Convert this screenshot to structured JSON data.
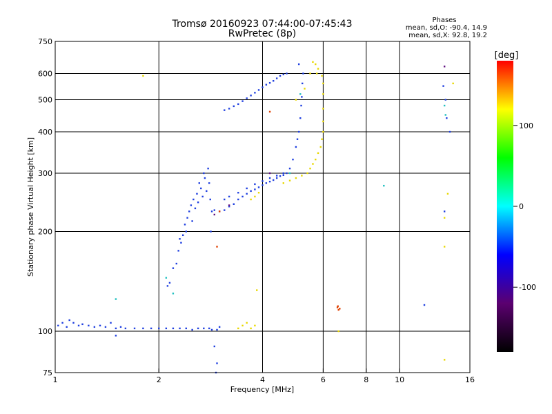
{
  "chart_data": {
    "type": "scatter",
    "title": "Tromsø 20160923 07:44:00-07:45:43",
    "subtitle": "RwPretec (8p)",
    "xlabel": "Frequency [MHz]",
    "ylabel": "Stationary phase Virtual Height [km]",
    "x_scale": "log",
    "y_scale": "log",
    "xlim": [
      1,
      16
    ],
    "ylim": [
      75,
      750
    ],
    "x_ticks": [
      1,
      2,
      4,
      6,
      8,
      10,
      16
    ],
    "x_tick_labels": [
      "1",
      "2",
      "4",
      "6",
      "8",
      "10",
      "16"
    ],
    "x_grid": [
      2,
      4,
      6,
      8,
      10
    ],
    "y_ticks": [
      75,
      100,
      200,
      300,
      400,
      500,
      600,
      750
    ],
    "y_tick_labels": [
      "75",
      "100",
      "200",
      "300",
      "400",
      "500",
      "600",
      "750"
    ],
    "y_grid": [
      100,
      200,
      300,
      400,
      500,
      600
    ],
    "grid": true,
    "stats": {
      "heading": "Phases",
      "line_o": "mean, sd,O: -90.4, 14.9",
      "line_x": "mean, sd,X:  92.8, 19.2"
    },
    "colorbar": {
      "label": "[deg]",
      "range": [
        -180,
        180
      ],
      "ticks": [
        100,
        0,
        -100
      ],
      "tick_labels": [
        "100",
        "0",
        "-100"
      ],
      "stops": [
        "#000000",
        "#5b0070",
        "#0000ff",
        "#00ffff",
        "#00ff00",
        "#ffff00",
        "#ff0000"
      ]
    },
    "series": [
      {
        "phase": -100,
        "color": "#2040e0",
        "points": [
          [
            1.02,
            104
          ],
          [
            1.05,
            106
          ],
          [
            1.08,
            103
          ],
          [
            1.1,
            108
          ],
          [
            1.13,
            106
          ],
          [
            1.17,
            104
          ],
          [
            1.2,
            105
          ],
          [
            1.25,
            104
          ],
          [
            1.3,
            103
          ],
          [
            1.35,
            104
          ],
          [
            1.4,
            103
          ],
          [
            1.45,
            106
          ],
          [
            1.5,
            102
          ],
          [
            1.55,
            103
          ],
          [
            1.6,
            102
          ],
          [
            1.7,
            102
          ],
          [
            1.8,
            102
          ],
          [
            1.9,
            102
          ],
          [
            2.0,
            102
          ],
          [
            2.1,
            102
          ],
          [
            2.2,
            102
          ],
          [
            2.3,
            102
          ],
          [
            2.4,
            102
          ],
          [
            2.5,
            101
          ],
          [
            2.6,
            102
          ],
          [
            2.7,
            102
          ],
          [
            2.8,
            102
          ],
          [
            2.85,
            101
          ],
          [
            2.95,
            101
          ],
          [
            3.0,
            103
          ],
          [
            2.12,
            137
          ],
          [
            2.15,
            140
          ],
          [
            2.2,
            155
          ],
          [
            2.25,
            160
          ],
          [
            2.28,
            175
          ],
          [
            2.3,
            190
          ],
          [
            2.32,
            185
          ],
          [
            2.35,
            195
          ],
          [
            2.38,
            210
          ],
          [
            2.4,
            200
          ],
          [
            2.42,
            220
          ],
          [
            2.45,
            230
          ],
          [
            2.48,
            240
          ],
          [
            2.5,
            215
          ],
          [
            2.52,
            250
          ],
          [
            2.55,
            235
          ],
          [
            2.58,
            260
          ],
          [
            2.6,
            245
          ],
          [
            2.62,
            280
          ],
          [
            2.65,
            270
          ],
          [
            2.68,
            255
          ],
          [
            2.7,
            300
          ],
          [
            2.72,
            290
          ],
          [
            2.75,
            265
          ],
          [
            2.78,
            310
          ],
          [
            2.8,
            280
          ],
          [
            2.82,
            250
          ],
          [
            2.85,
            230
          ],
          [
            2.83,
            200
          ],
          [
            2.9,
            232
          ],
          [
            3.0,
            230
          ],
          [
            3.1,
            232
          ],
          [
            3.2,
            238
          ],
          [
            3.3,
            242
          ],
          [
            3.4,
            250
          ],
          [
            3.5,
            255
          ],
          [
            3.6,
            260
          ],
          [
            3.7,
            265
          ],
          [
            3.8,
            268
          ],
          [
            3.9,
            272
          ],
          [
            4.0,
            276
          ],
          [
            4.1,
            280
          ],
          [
            4.2,
            283
          ],
          [
            4.3,
            286
          ],
          [
            4.4,
            290
          ],
          [
            4.5,
            294
          ],
          [
            4.6,
            296
          ],
          [
            4.7,
            300
          ],
          [
            4.8,
            310
          ],
          [
            4.9,
            330
          ],
          [
            5.0,
            360
          ],
          [
            5.05,
            380
          ],
          [
            5.1,
            400
          ],
          [
            5.15,
            440
          ],
          [
            5.18,
            480
          ],
          [
            5.2,
            510
          ],
          [
            5.22,
            560
          ],
          [
            5.25,
            600
          ],
          [
            3.1,
            250
          ],
          [
            3.2,
            255
          ],
          [
            3.4,
            262
          ],
          [
            3.6,
            270
          ],
          [
            3.8,
            278
          ],
          [
            4.0,
            284
          ],
          [
            4.2,
            290
          ],
          [
            4.4,
            295
          ],
          [
            4.6,
            300
          ],
          [
            3.1,
            465
          ],
          [
            3.2,
            470
          ],
          [
            3.3,
            478
          ],
          [
            3.4,
            485
          ],
          [
            3.5,
            495
          ],
          [
            3.6,
            505
          ],
          [
            3.7,
            515
          ],
          [
            3.8,
            525
          ],
          [
            3.9,
            535
          ],
          [
            4.0,
            545
          ],
          [
            4.1,
            555
          ],
          [
            4.2,
            562
          ],
          [
            4.3,
            570
          ],
          [
            4.4,
            580
          ],
          [
            4.5,
            590
          ],
          [
            4.6,
            596
          ],
          [
            4.7,
            600
          ],
          [
            5.1,
            640
          ],
          [
            1.5,
            97
          ],
          [
            2.9,
            90
          ],
          [
            2.95,
            80
          ],
          [
            2.93,
            75
          ],
          [
            14.0,
            400
          ],
          [
            13.4,
            550
          ],
          [
            13.6,
            500
          ],
          [
            13.7,
            440
          ],
          [
            13.5,
            230
          ],
          [
            11.8,
            120
          ]
        ]
      },
      {
        "phase": 100,
        "color": "#e8d800",
        "points": [
          [
            3.4,
            102
          ],
          [
            3.5,
            104
          ],
          [
            3.6,
            106
          ],
          [
            3.7,
            102
          ],
          [
            3.8,
            104
          ],
          [
            3.85,
            133
          ],
          [
            3.7,
            250
          ],
          [
            3.8,
            255
          ],
          [
            3.9,
            262
          ],
          [
            4.6,
            280
          ],
          [
            4.8,
            285
          ],
          [
            5.0,
            290
          ],
          [
            5.2,
            295
          ],
          [
            5.4,
            300
          ],
          [
            5.5,
            310
          ],
          [
            5.6,
            320
          ],
          [
            5.7,
            330
          ],
          [
            5.8,
            345
          ],
          [
            5.9,
            360
          ],
          [
            5.95,
            380
          ],
          [
            6.0,
            400
          ],
          [
            6.0,
            430
          ],
          [
            6.0,
            470
          ],
          [
            6.0,
            520
          ],
          [
            6.0,
            560
          ],
          [
            5.95,
            590
          ],
          [
            5.8,
            620
          ],
          [
            5.7,
            640
          ],
          [
            5.75,
            600
          ],
          [
            5.6,
            650
          ],
          [
            5.5,
            600
          ],
          [
            5.0,
            500
          ],
          [
            5.3,
            540
          ],
          [
            1.8,
            590
          ],
          [
            6.65,
            100
          ],
          [
            13.5,
            180
          ],
          [
            13.8,
            260
          ],
          [
            13.5,
            220
          ],
          [
            14.3,
            560
          ],
          [
            13.5,
            82
          ]
        ]
      },
      {
        "phase": 0,
        "color": "#20c0c0",
        "points": [
          [
            1.5,
            125
          ],
          [
            9.0,
            275
          ],
          [
            13.6,
            450
          ],
          [
            13.5,
            480
          ],
          [
            2.1,
            145
          ],
          [
            2.2,
            130
          ],
          [
            4.8,
            300
          ],
          [
            5.15,
            520
          ]
        ]
      },
      {
        "phase": 150,
        "color": "#e04000",
        "points": [
          [
            6.6,
            118
          ],
          [
            6.65,
            116
          ],
          [
            6.7,
            117
          ],
          [
            6.62,
            119
          ],
          [
            2.95,
            180
          ],
          [
            4.2,
            460
          ],
          [
            3.0,
            230
          ]
        ]
      },
      {
        "phase": -150,
        "color": "#601080",
        "points": [
          [
            13.5,
            630
          ],
          [
            2.9,
            225
          ],
          [
            3.2,
            240
          ],
          [
            4.2,
            300
          ]
        ]
      }
    ]
  }
}
